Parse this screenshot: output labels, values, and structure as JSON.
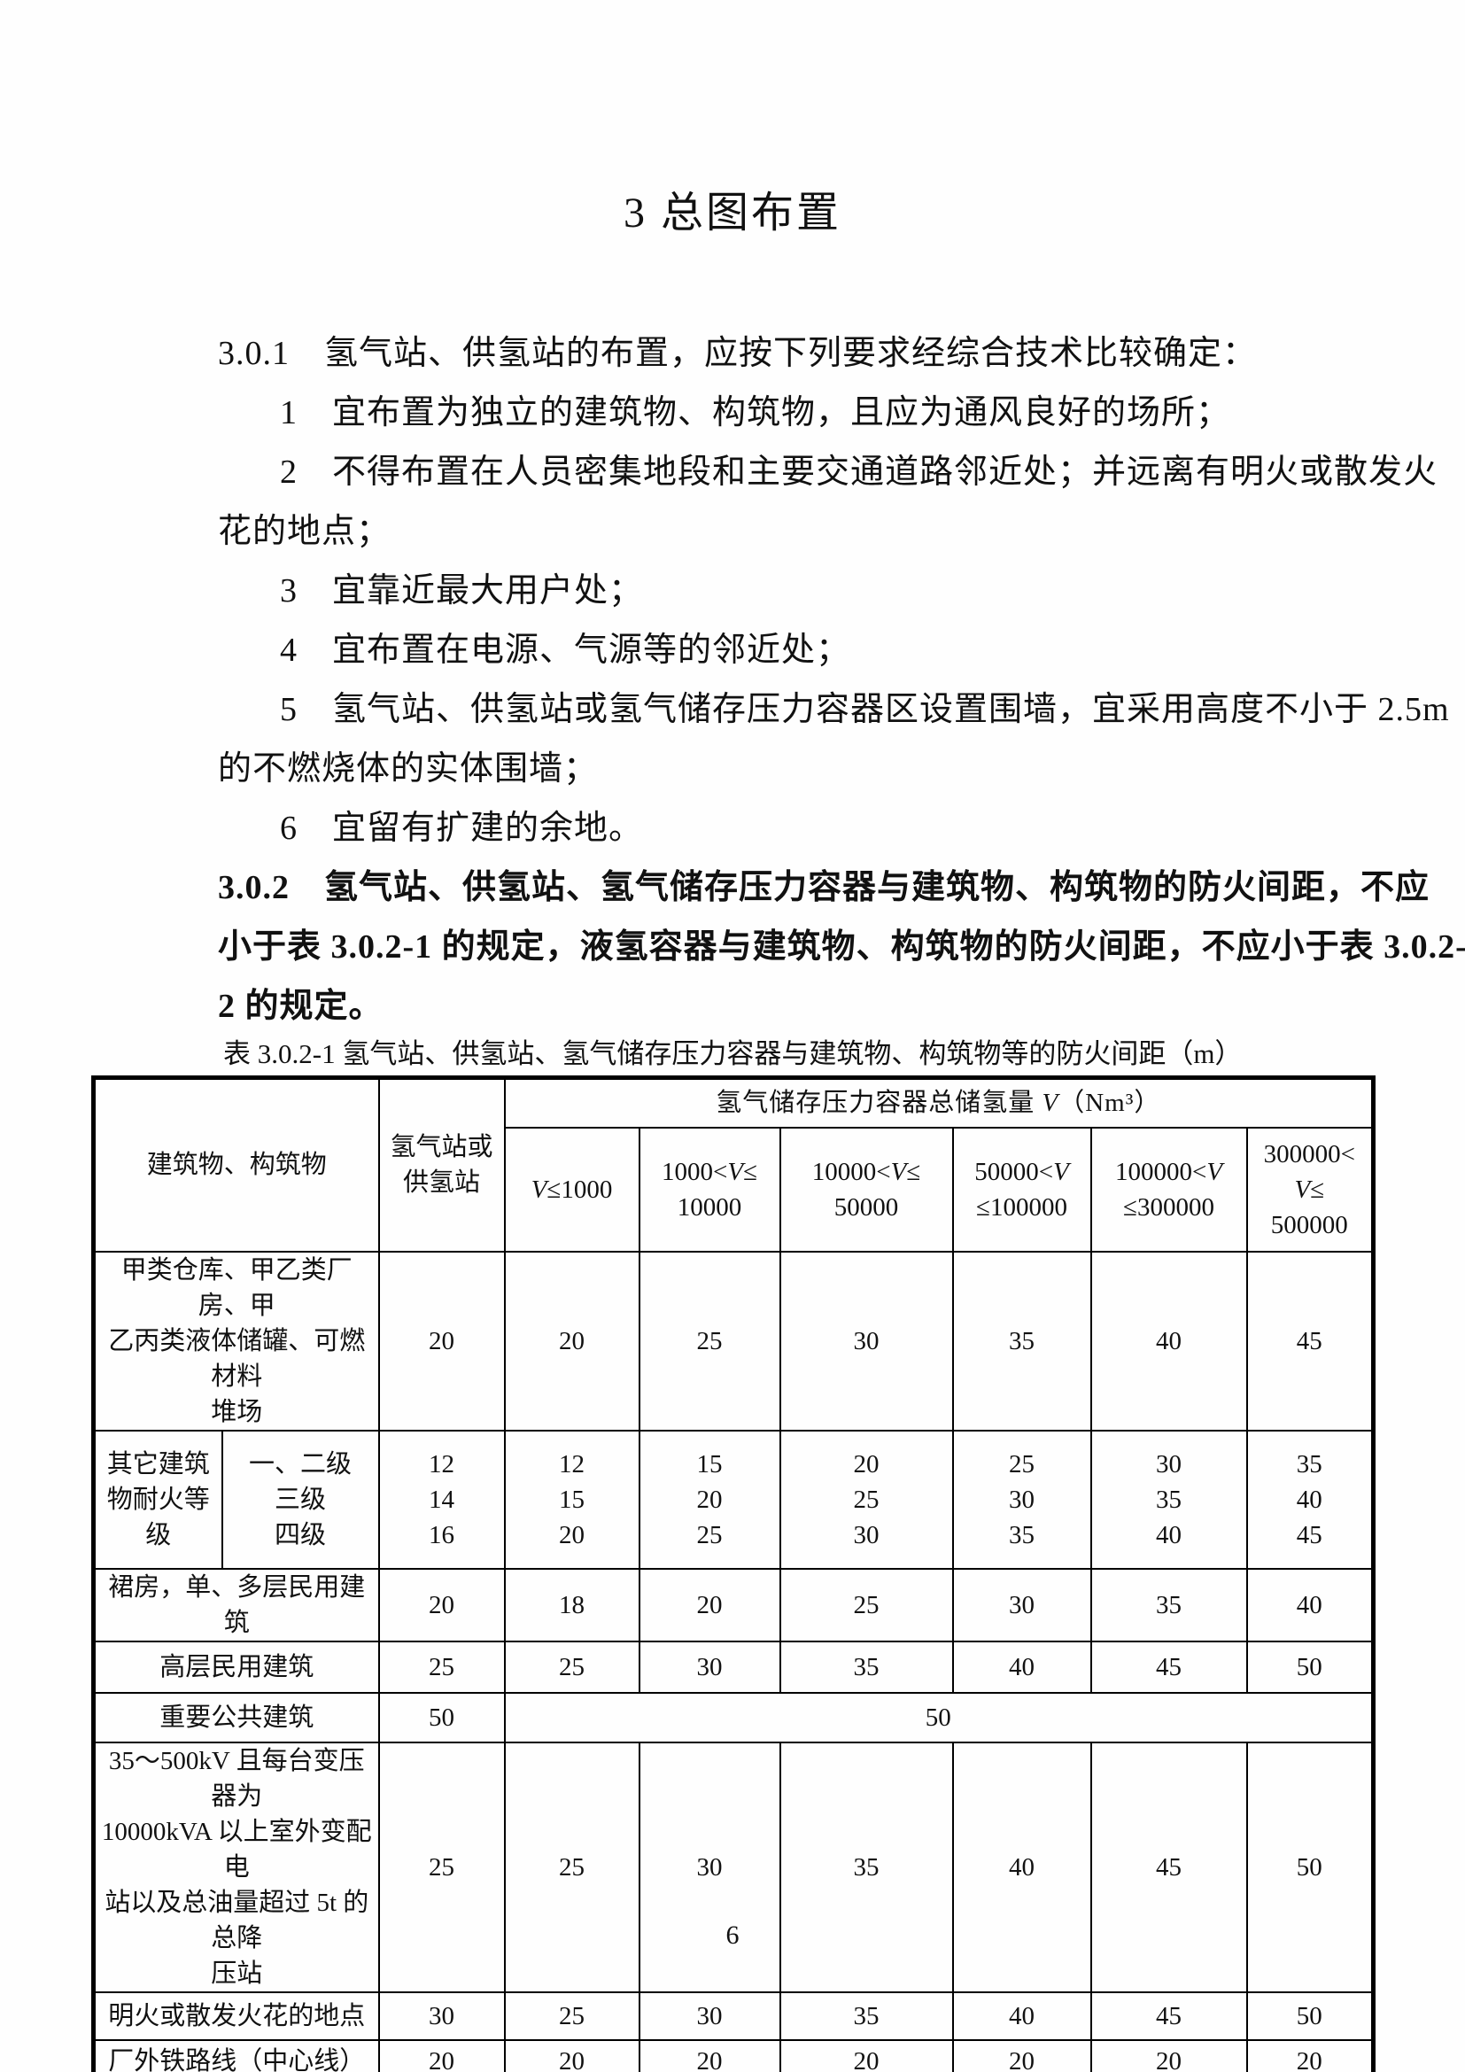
{
  "title": "3  总图布置",
  "body": {
    "lines": [
      "3.0.1　氢气站、供氢站的布置，应按下列要求经综合技术比较确定：",
      "1　宜布置为独立的建筑物、构筑物，且应为通风良好的场所；",
      "2　不得布置在人员密集地段和主要交通道路邻近处；并远离有明火或散发火",
      "花的地点；",
      "3　宜靠近最大用户处；",
      "4　宜布置在电源、气源等的邻近处；",
      "5　氢气站、供氢站或氢气储存压力容器区设置围墙，宜采用高度不小于 2.5m",
      "的不燃烧体的实体围墙；",
      "6　宜留有扩建的余地。",
      "3.0.2　氢气站、供氢站、氢气储存压力容器与建筑物、构筑物的防火间距，不应",
      "小于表 3.0.2-1 的规定，液氢容器与建筑物、构筑物的防火间距，不应小于表 3.0.2-",
      "2 的规定。"
    ]
  },
  "table": {
    "caption": "表 3.0.2-1 氢气站、供氢站、氢气储存压力容器与建筑物、构筑物等的防火间距（m）",
    "header": {
      "building": "建筑物、构筑物",
      "station": "氢气站或\n供氢站",
      "capacity_title": "氢气储存压力容器总储氢量 V（Nm³）",
      "ranges": [
        "V≤1000",
        "1000<V≤\n10000",
        "10000<V≤\n50000",
        "50000<V\n≤100000",
        "100000<V\n≤300000",
        "300000<\nV≤\n500000"
      ]
    },
    "rows": {
      "jia": {
        "label": "甲类仓库、甲乙类厂房、甲\n乙丙类液体储罐、可燃材料\n堆场",
        "station": "20",
        "values": [
          "20",
          "25",
          "30",
          "35",
          "40",
          "45"
        ]
      },
      "fire_rating": {
        "left": "其它建筑\n物耐火等\n级",
        "grades": "一、二级\n三级\n四级",
        "station": "12\n14\n16",
        "values": [
          "12\n15\n20",
          "15\n20\n25",
          "20\n25\n30",
          "25\n30\n35",
          "30\n35\n40",
          "35\n40\n45"
        ]
      },
      "qunfang": {
        "label": "裙房，单、多层民用建筑",
        "station": "20",
        "values": [
          "18",
          "20",
          "25",
          "30",
          "35",
          "40"
        ]
      },
      "gaoceng": {
        "label": "高层民用建筑",
        "station": "25",
        "values": [
          "25",
          "30",
          "35",
          "40",
          "45",
          "50"
        ]
      },
      "public": {
        "label": "重要公共建筑",
        "station": "50",
        "merged": "50"
      },
      "transformer": {
        "label": "35～500kV 且每台变压器为\n10000kVA 以上室外变配电\n站以及总油量超过 5t 的总降\n压站",
        "station": "25",
        "values": [
          "25",
          "30",
          "35",
          "40",
          "45",
          "50"
        ]
      },
      "minghuo": {
        "label": "明火或散发火花的地点",
        "station": "30",
        "values": [
          "25",
          "30",
          "35",
          "40",
          "45",
          "50"
        ]
      },
      "railway": {
        "label": "厂外铁路线（中心线）",
        "station": "20",
        "values": [
          "20",
          "20",
          "20",
          "20",
          "20",
          "20"
        ]
      }
    }
  },
  "page": {
    "number": "6"
  }
}
